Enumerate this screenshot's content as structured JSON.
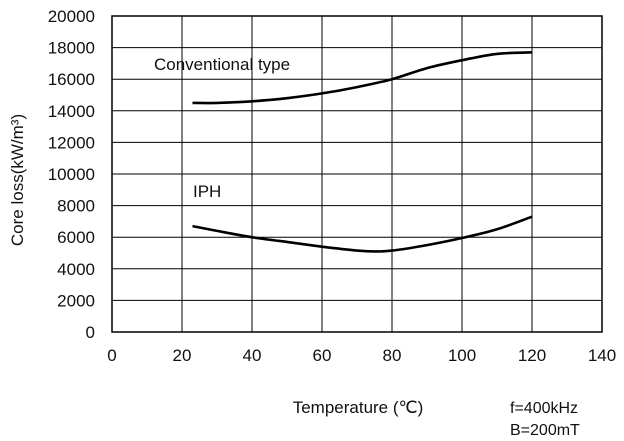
{
  "chart_data": {
    "type": "line",
    "title": "",
    "xlabel": "Temperature (℃)",
    "ylabel": "Core loss(kW/m³)",
    "xlim": [
      0,
      140
    ],
    "ylim": [
      0,
      20000
    ],
    "x_ticks": [
      "0",
      "20",
      "40",
      "60",
      "80",
      "100",
      "120",
      "140"
    ],
    "y_ticks": [
      "0",
      "2000",
      "4000",
      "6000",
      "8000",
      "10000",
      "12000",
      "14000",
      "16000",
      "18000",
      "20000"
    ],
    "grid": true,
    "series": [
      {
        "name": "Conventional type",
        "x": [
          23,
          30,
          40,
          50,
          60,
          70,
          80,
          90,
          100,
          110,
          120
        ],
        "y": [
          14500,
          14500,
          14600,
          14800,
          15100,
          15500,
          16000,
          16700,
          17200,
          17600,
          17700
        ]
      },
      {
        "name": "IPH",
        "x": [
          23,
          30,
          40,
          50,
          60,
          70,
          75,
          80,
          90,
          100,
          110,
          120
        ],
        "y": [
          6700,
          6400,
          6000,
          5700,
          5400,
          5150,
          5100,
          5150,
          5500,
          5950,
          6500,
          7300
        ]
      }
    ],
    "conditions": [
      "f=400kHz",
      "B=200mT"
    ]
  }
}
